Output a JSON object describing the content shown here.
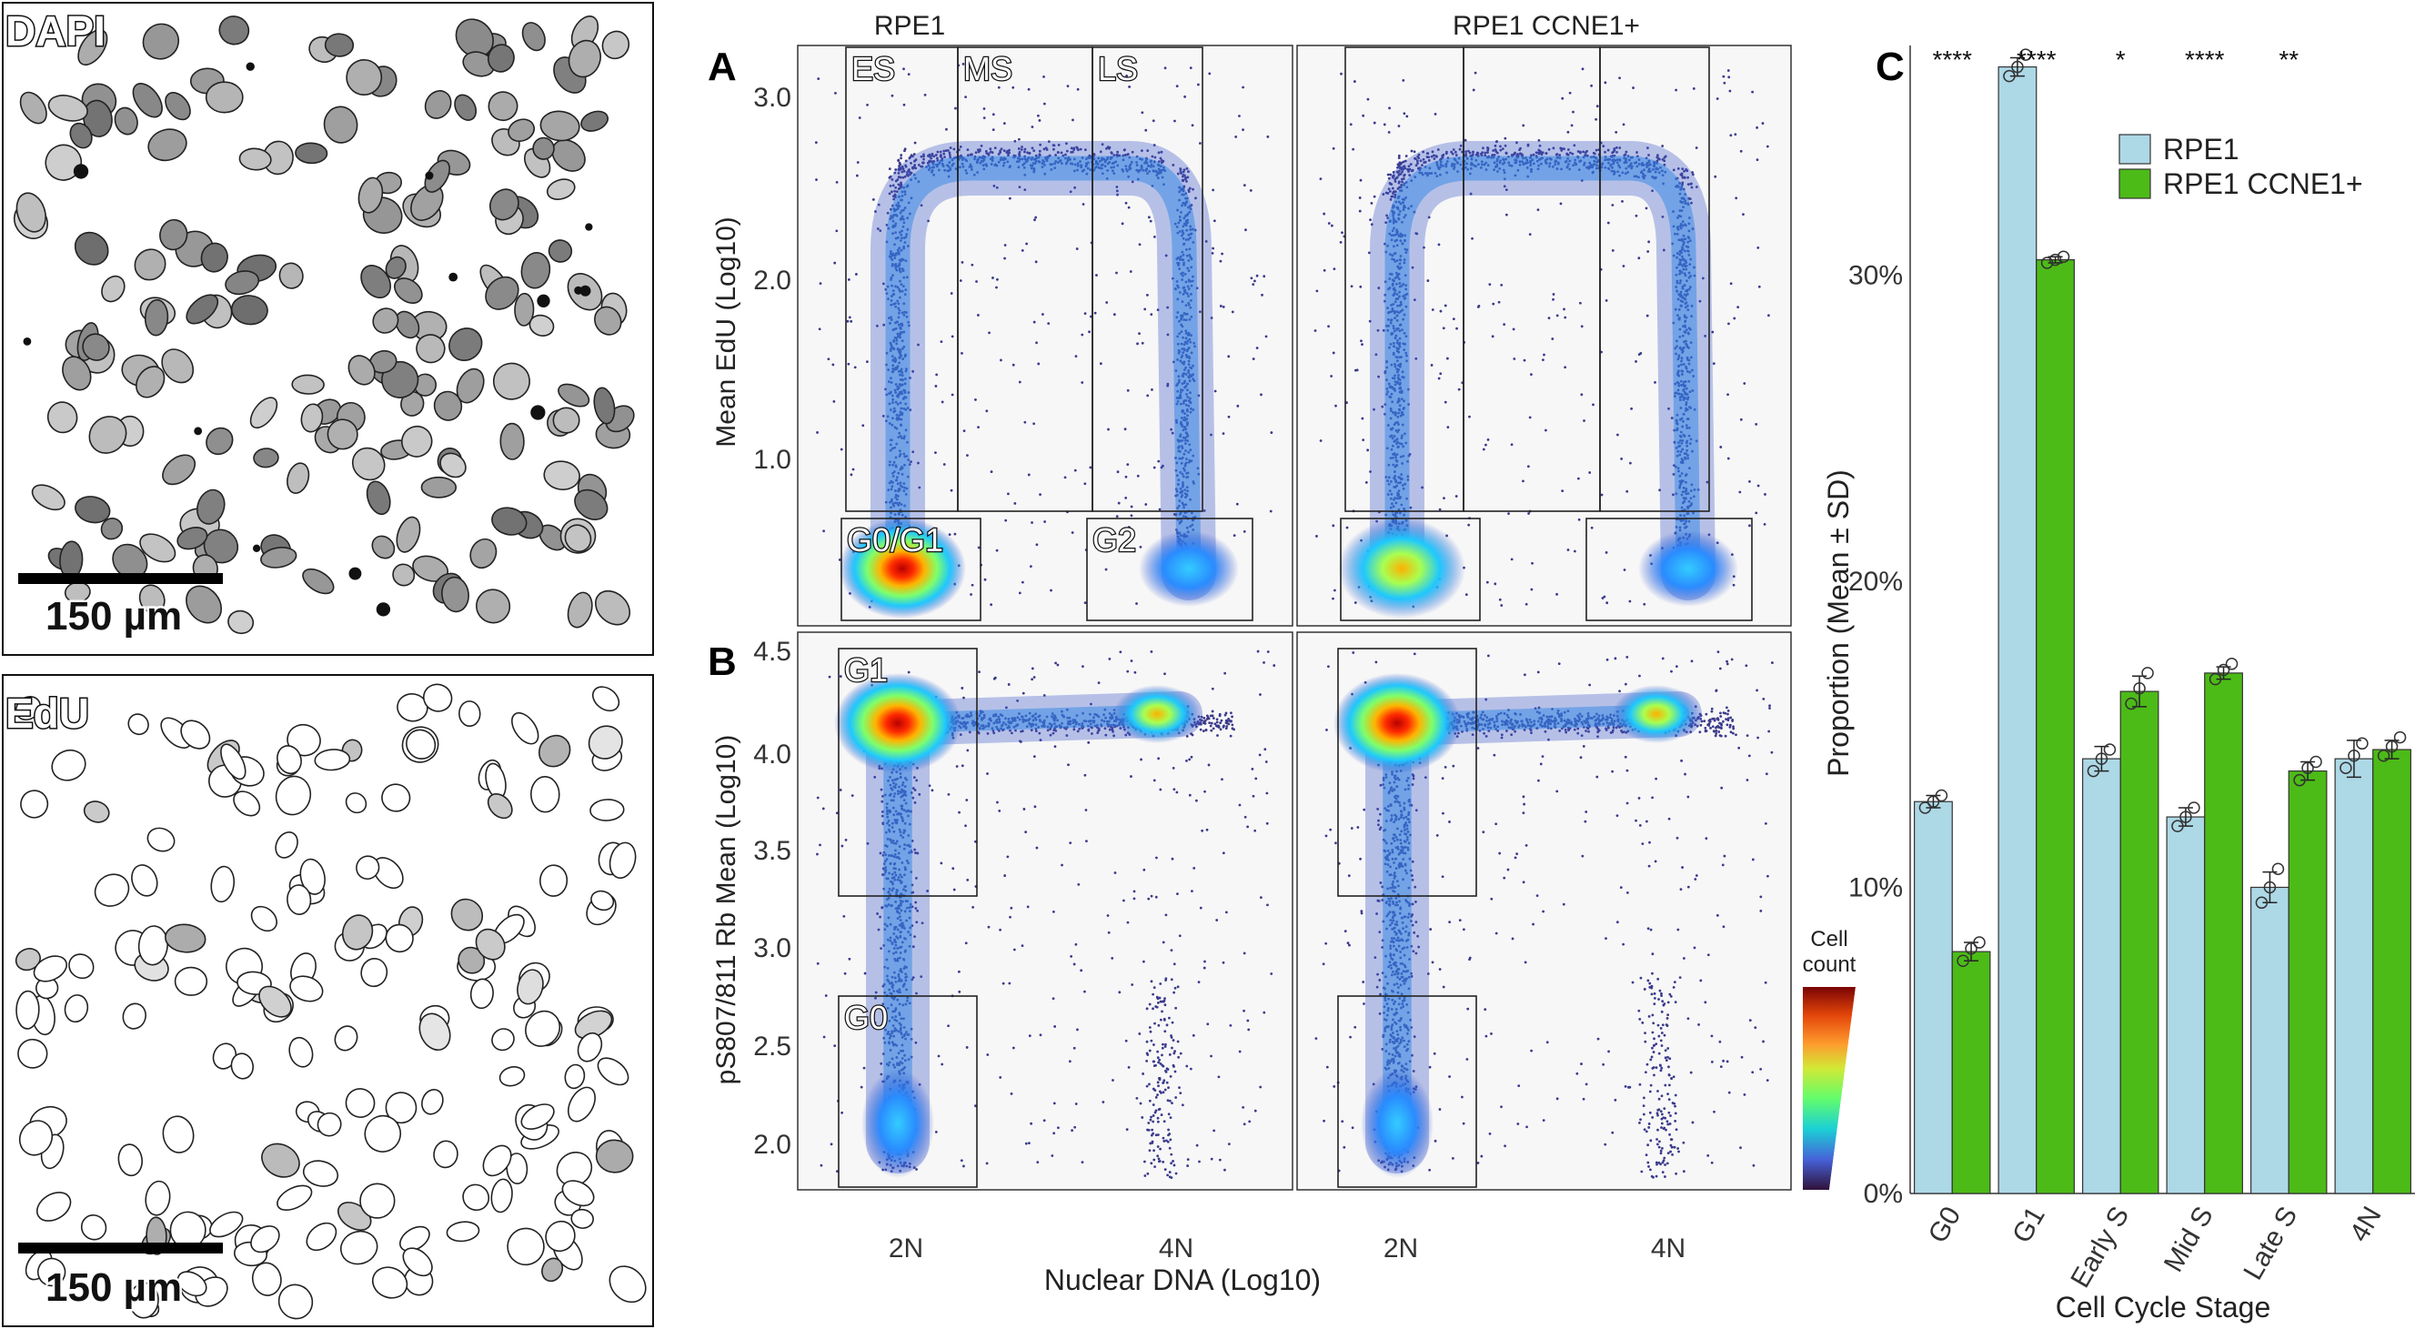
{
  "micrographs": {
    "dapi_label": "DAPI",
    "edu_label": "EdU",
    "scalebar_text": "150 µm"
  },
  "panel_letters": {
    "a": "A",
    "b": "B",
    "c": "C"
  },
  "flow": {
    "col_titles": [
      "RPE1",
      "RPE1 CCNE1+"
    ],
    "a_ylabel": "Mean EdU (Log10)",
    "a_yticks": [
      "3.0",
      "2.0",
      "1.0"
    ],
    "b_ylabel": "pS807/811 Rb Mean (Log10)",
    "b_yticks": [
      "4.5",
      "4.0",
      "3.5",
      "3.0",
      "2.5",
      "2.0"
    ],
    "xticks": [
      "2N",
      "4N"
    ],
    "xlabel": "Nuclear DNA (Log10)",
    "a_gates": [
      "ES",
      "MS",
      "LS",
      "G0/G1",
      "G2"
    ],
    "b_gates": [
      "G1",
      "G0"
    ],
    "colorbar_title": [
      "Cell",
      "count"
    ]
  },
  "chart_data": {
    "type": "bar",
    "categories": [
      "G0",
      "G1",
      "Early S",
      "Mid S",
      "Late S",
      "4N"
    ],
    "series": [
      {
        "name": "RPE1",
        "color": "#add8e6",
        "values": [
          12.8,
          36.8,
          14.2,
          12.3,
          10.0,
          14.2
        ],
        "sd": [
          0.2,
          0.3,
          0.4,
          0.3,
          0.5,
          0.6
        ],
        "points": [
          [
            12.6,
            12.8,
            13.0
          ],
          [
            36.5,
            36.8,
            37.2
          ],
          [
            13.8,
            14.2,
            14.5
          ],
          [
            12.0,
            12.3,
            12.6
          ],
          [
            9.5,
            10.0,
            10.6
          ],
          [
            13.9,
            14.3,
            14.7
          ]
        ]
      },
      {
        "name": "RPE1 CCNE1+",
        "color": "#4cbb17",
        "values": [
          7.9,
          30.5,
          16.4,
          17.0,
          13.8,
          14.5
        ],
        "sd": [
          0.3,
          0.1,
          0.5,
          0.2,
          0.3,
          0.3
        ],
        "points": [
          [
            7.6,
            8.0,
            8.2
          ],
          [
            30.4,
            30.5,
            30.6
          ],
          [
            16.0,
            16.5,
            17.0
          ],
          [
            16.8,
            17.1,
            17.3
          ],
          [
            13.5,
            13.9,
            14.1
          ],
          [
            14.3,
            14.6,
            14.9
          ]
        ]
      }
    ],
    "significance": [
      "****",
      "****",
      "*",
      "****",
      "**",
      ""
    ],
    "ylabel": "Proportion (Mean ± SD)",
    "xlabel": "Cell Cycle Stage",
    "yticks": [
      "0%",
      "10%",
      "20%",
      "30%"
    ],
    "ylim": [
      0,
      37.5
    ],
    "legend_position": "top-right",
    "grid": false
  }
}
